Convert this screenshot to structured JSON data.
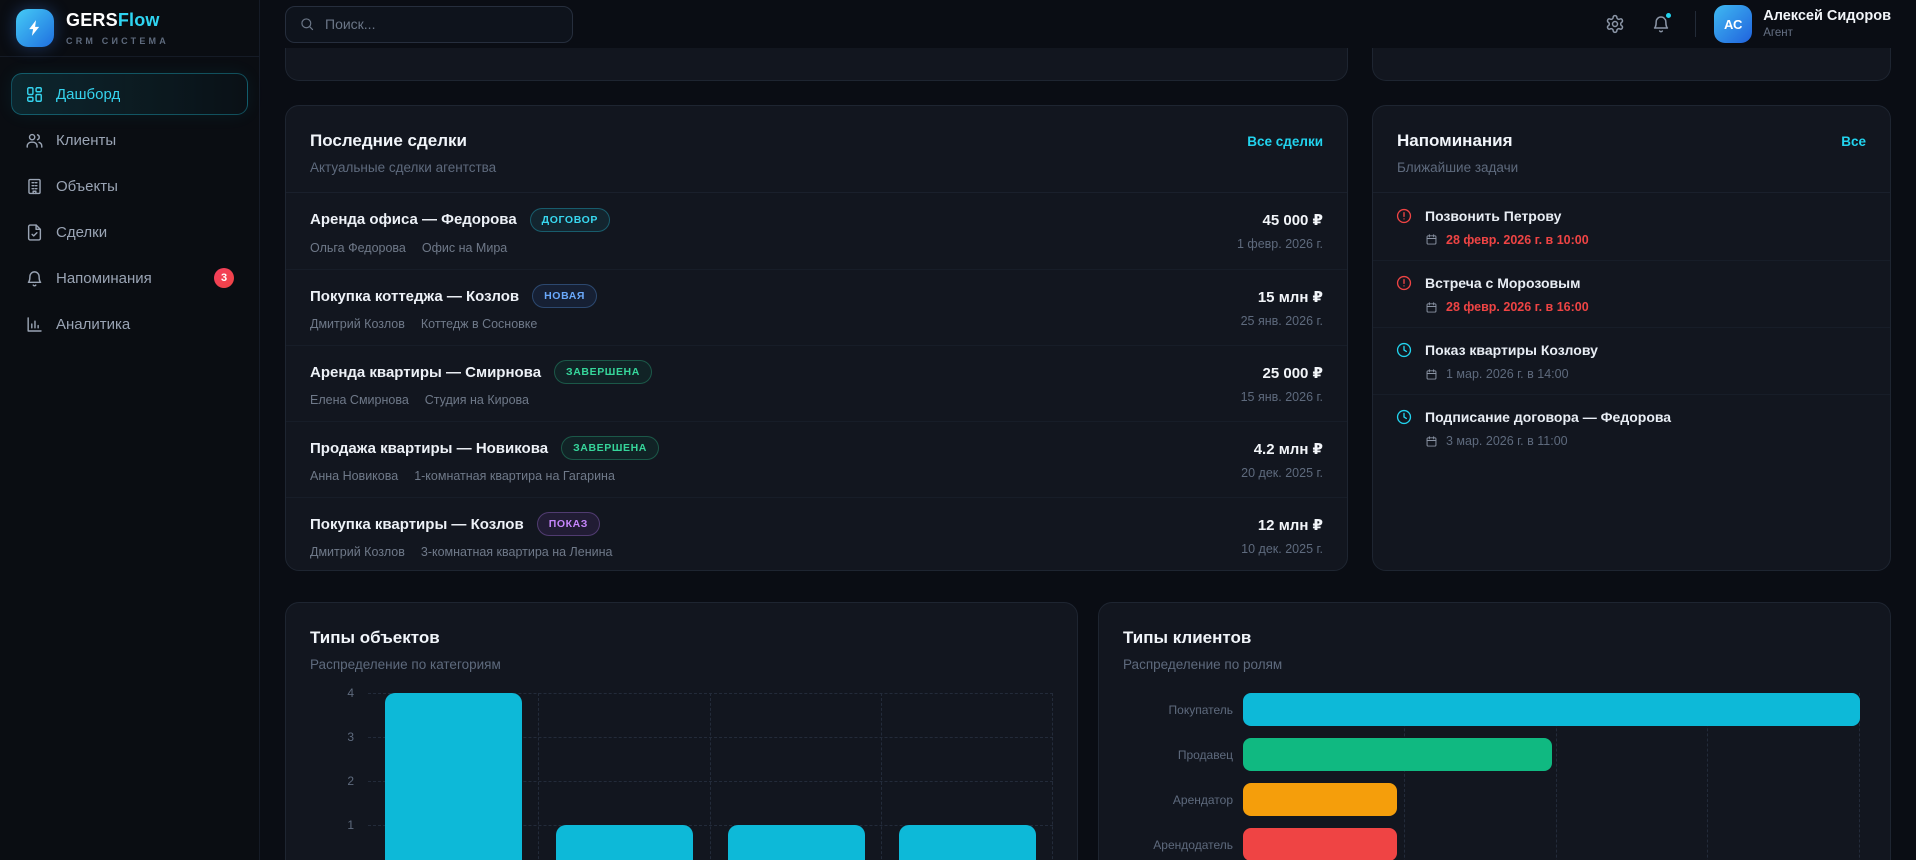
{
  "brand": {
    "logo_icon": "bolt-icon",
    "name_primary": "GERS",
    "name_accent": "Flow",
    "tagline": "CRM СИСТЕМА"
  },
  "header": {
    "search_placeholder": "Поиск...",
    "search_icon": "search-icon",
    "settings_icon": "settings-icon",
    "bell_icon": "bell-icon",
    "bell_has_dot": true,
    "user": {
      "initials": "АС",
      "name": "Алексей Сидоров",
      "role": "Агент"
    }
  },
  "sidebar": {
    "items": [
      {
        "label": "Дашборд",
        "icon": "dashboard-icon",
        "active": true
      },
      {
        "label": "Клиенты",
        "icon": "users-icon"
      },
      {
        "label": "Объекты",
        "icon": "building-icon"
      },
      {
        "label": "Сделки",
        "icon": "deals-icon"
      },
      {
        "label": "Напоминания",
        "icon": "bell-icon",
        "badge": "3"
      },
      {
        "label": "Аналитика",
        "icon": "analytics-icon"
      }
    ]
  },
  "deals_card": {
    "title": "Последние сделки",
    "subtitle": "Актуальные сделки агентства",
    "link_label": "Все сделки",
    "deals": [
      {
        "title": "Аренда офиса — Федорова",
        "status": "ДОГОВОР",
        "status_type": "cyan",
        "client": "Ольга Федорова",
        "object": "Офис на Мира",
        "amount": "45 000 ₽",
        "date": "1 февр. 2026 г."
      },
      {
        "title": "Покупка коттеджа — Козлов",
        "status": "НОВАЯ",
        "status_type": "blue",
        "client": "Дмитрий Козлов",
        "object": "Коттедж в Сосновке",
        "amount": "15 млн ₽",
        "date": "25 янв. 2026 г."
      },
      {
        "title": "Аренда квартиры — Смирнова",
        "status": "ЗАВЕРШЕНА",
        "status_type": "green",
        "client": "Елена Смирнова",
        "object": "Студия на Кирова",
        "amount": "25 000 ₽",
        "date": "15 янв. 2026 г."
      },
      {
        "title": "Продажа квартиры — Новикова",
        "status": "ЗАВЕРШЕНА",
        "status_type": "green",
        "client": "Анна Новикова",
        "object": "1-комнатная квартира на Гагарина",
        "amount": "4.2 млн ₽",
        "date": "20 дек. 2025 г."
      },
      {
        "title": "Покупка квартиры — Козлов",
        "status": "ПОКАЗ",
        "status_type": "purple",
        "client": "Дмитрий Козлов",
        "object": "3-комнатная квартира на Ленина",
        "amount": "12 млн ₽",
        "date": "10 дек. 2025 г."
      }
    ]
  },
  "reminders_card": {
    "title": "Напоминания",
    "subtitle": "Ближайшие задачи",
    "link_label": "Все",
    "date_icon": "calendar-icon",
    "items": [
      {
        "title": "Позвонить Петрову",
        "datetime": "28 февр. 2026 г. в 10:00",
        "urgent": true,
        "icon": "alert-circle-icon"
      },
      {
        "title": "Встреча с Морозовым",
        "datetime": "28 февр. 2026 г. в 16:00",
        "urgent": true,
        "icon": "alert-circle-icon"
      },
      {
        "title": "Показ квартиры Козлову",
        "datetime": "1 мар. 2026 г. в 14:00",
        "urgent": false,
        "icon": "clock-icon"
      },
      {
        "title": "Подписание договора — Федорова",
        "datetime": "3 мар. 2026 г. в 11:00",
        "urgent": false,
        "icon": "clock-icon"
      }
    ]
  },
  "chart_data": [
    {
      "type": "bar",
      "title": "Типы объектов",
      "subtitle": "Распределение по категориям",
      "categories": [
        "",
        "",
        "",
        ""
      ],
      "values": [
        4,
        1,
        1,
        1
      ],
      "ylim": [
        0,
        4
      ],
      "yticks": [
        1,
        2,
        3,
        4
      ],
      "bar_color": "#0db9d8",
      "grid": "dashed",
      "legend": "none"
    },
    {
      "type": "bar",
      "orientation": "horizontal",
      "title": "Типы клиентов",
      "subtitle": "Распределение по ролям",
      "categories": [
        "Покупатель",
        "Продавец",
        "Арендатор",
        "Арендодатель"
      ],
      "values": [
        4,
        2,
        1,
        1
      ],
      "colors": [
        "#0db9d8",
        "#10b981",
        "#f59e0b",
        "#ef4444"
      ],
      "xlim": [
        0,
        4
      ],
      "grid": "dashed",
      "legend": "none"
    }
  ],
  "colors": {
    "accent_cyan": "#22d3ee",
    "badge_cyan": "#38d8f0",
    "badge_blue": "#6aa9fb",
    "badge_green": "#36d69b",
    "badge_purple": "#c585fb",
    "urgent_red": "#ef4444",
    "nav_badge_red": "#f43f5e",
    "bar_cyan": "#0db9d8",
    "bar_green": "#10b981",
    "bar_orange": "#f59e0b",
    "bar_red": "#ef4444"
  }
}
